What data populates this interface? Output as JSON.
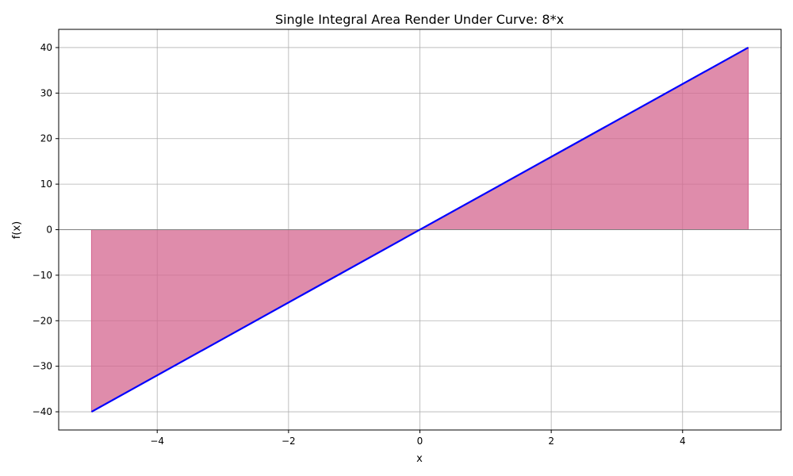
{
  "chart_data": {
    "type": "area",
    "title": "Single Integral Area Render Under Curve: 8*x",
    "xlabel": "x",
    "ylabel": "f(x)",
    "xlim": [
      -5.5,
      5.5
    ],
    "ylim": [
      -44,
      44
    ],
    "xticks": [
      -4,
      -2,
      0,
      2,
      4
    ],
    "xtick_labels": [
      "−4",
      "−2",
      "0",
      "2",
      "4"
    ],
    "yticks": [
      -40,
      -30,
      -20,
      -10,
      0,
      10,
      20,
      30,
      40
    ],
    "ytick_labels": [
      "−40",
      "−30",
      "−20",
      "−10",
      "0",
      "10",
      "20",
      "30",
      "40"
    ],
    "grid": true,
    "series": [
      {
        "x": [
          -5,
          5
        ],
        "y": [
          -40,
          40
        ],
        "line_color": "#0000ff",
        "fill_color": "#d4658f",
        "fill_to": 0
      }
    ],
    "hline": 0
  }
}
